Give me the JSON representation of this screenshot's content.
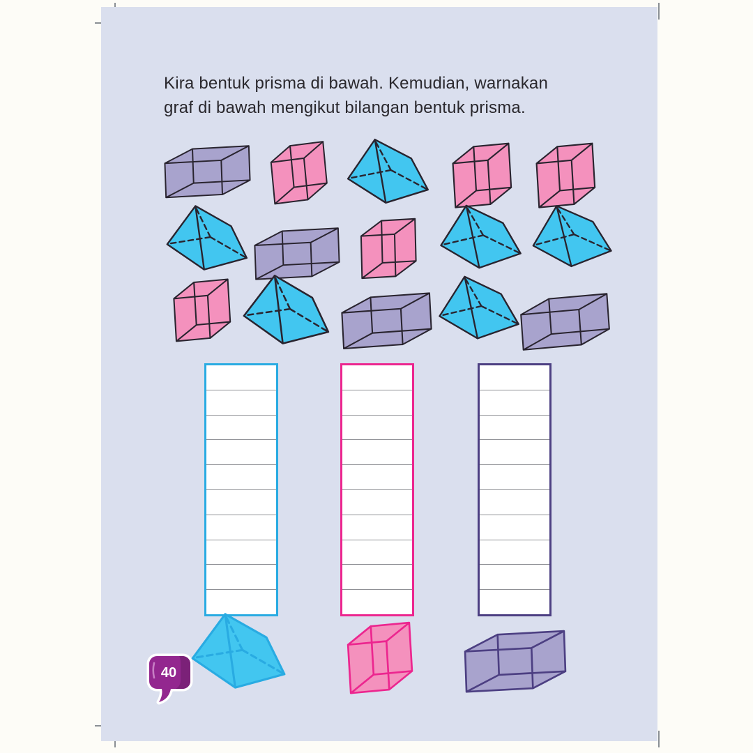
{
  "instruction": {
    "line1": "Kira bentuk prisma di bawah. Kemudian, warnakan",
    "line2": "graf di bawah mengikut bilangan bentuk prisma."
  },
  "page_number": "40",
  "colors": {
    "page_background": "#dadfee",
    "prism_blue_fill": "#42c6f0",
    "cube_pink_fill": "#f491bd",
    "cuboid_purple_fill": "#a8a3cd",
    "shape_outline": "#29242f",
    "column_blue_border": "#29abe2",
    "column_pink_border": "#ec268f",
    "column_purple_border": "#4c3f82",
    "cell_divider": "#8f9095",
    "badge_purple": "#93278f",
    "badge_purple_dark": "#7b2178"
  },
  "shapes_grid": {
    "rows": [
      [
        "cuboid",
        "cube",
        "triangular-prism",
        "cube",
        "cube"
      ],
      [
        "triangular-prism",
        "cuboid",
        "cube",
        "triangular-prism",
        "triangular-prism"
      ],
      [
        "cube",
        "triangular-prism",
        "cuboid",
        "triangular-prism",
        "cuboid"
      ]
    ]
  },
  "chart_data": {
    "type": "bar",
    "description": "Empty colouring graph: one 10-cell column per prism type, all cells blank",
    "cells_per_column": 10,
    "colored_cells": [
      0,
      0,
      0
    ],
    "columns": [
      {
        "shape": "triangular-prism",
        "border_color": "#29abe2"
      },
      {
        "shape": "cube",
        "border_color": "#ec268f"
      },
      {
        "shape": "cuboid",
        "border_color": "#4c3f82"
      }
    ],
    "shape_counts_in_picture": {
      "triangular-prism": 6,
      "cube": 5,
      "cuboid": 4
    }
  }
}
